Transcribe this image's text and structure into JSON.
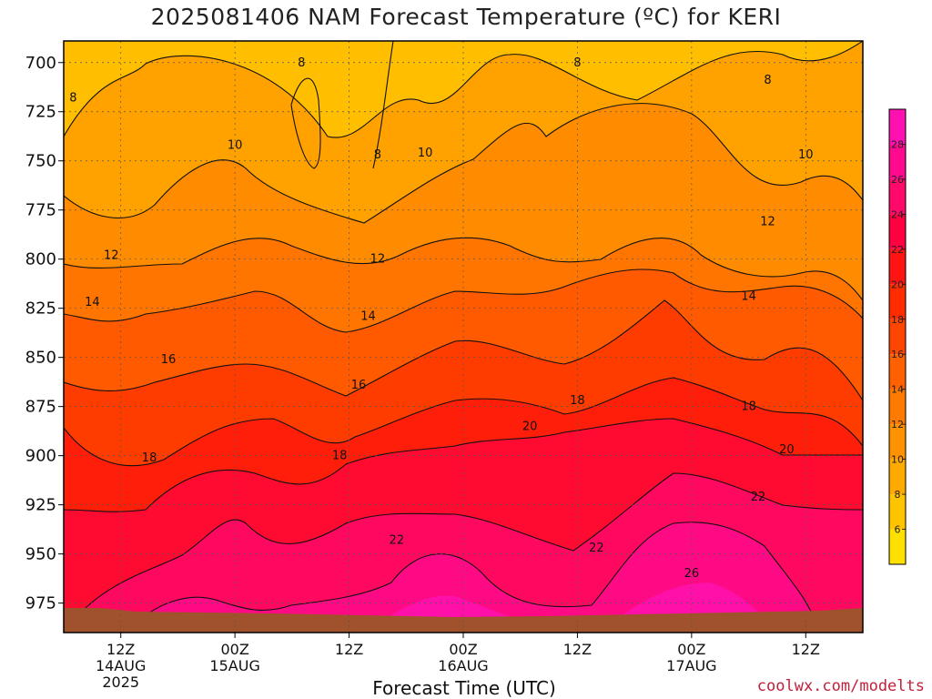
{
  "title": "2025081406 NAM Forecast Temperature (ºC) for KERI",
  "credit": "coolwx.com/modelts",
  "chart_data": {
    "type": "heatmap",
    "title": "2025081406 NAM Forecast Temperature (ºC) for KERI",
    "xlabel": "Forecast Time (UTC)",
    "ylabel": "",
    "y_scale": "pressure (inverted)",
    "y_ticks": [
      700,
      725,
      750,
      775,
      800,
      825,
      850,
      875,
      900,
      925,
      950,
      975
    ],
    "ylim": [
      990,
      689
    ],
    "x_ticks": [
      {
        "label": "12Z",
        "sub1": "14AUG",
        "sub2": "2025",
        "hours": 6
      },
      {
        "label": "00Z",
        "sub1": "15AUG",
        "sub2": "",
        "hours": 18
      },
      {
        "label": "12Z",
        "sub1": "",
        "sub2": "",
        "hours": 30
      },
      {
        "label": "00Z",
        "sub1": "16AUG",
        "sub2": "",
        "hours": 42
      },
      {
        "label": "12Z",
        "sub1": "",
        "sub2": "",
        "hours": 54
      },
      {
        "label": "00Z",
        "sub1": "17AUG",
        "sub2": "",
        "hours": 66
      },
      {
        "label": "12Z",
        "sub1": "",
        "sub2": "",
        "hours": 78
      }
    ],
    "xlim_hours": [
      0,
      84
    ],
    "grid": true,
    "colorbar": {
      "ticks": [
        6,
        8,
        10,
        12,
        14,
        16,
        18,
        20,
        22,
        24,
        26,
        28
      ],
      "colors": [
        "#ffe000",
        "#ffc400",
        "#ffaa00",
        "#ff9200",
        "#ff7a00",
        "#ff6000",
        "#ff4600",
        "#ff2c00",
        "#ff1414",
        "#ff0040",
        "#ff0a6a",
        "#ff0a8e",
        "#ff10b0"
      ]
    },
    "ground_color": "#a0522d",
    "isotherm_labels": [
      {
        "value": 8,
        "hours": 1,
        "p": 718
      },
      {
        "value": 8,
        "hours": 25,
        "p": 700
      },
      {
        "value": 8,
        "hours": 33,
        "p": 747
      },
      {
        "value": 8,
        "hours": 54,
        "p": 700
      },
      {
        "value": 8,
        "hours": 74,
        "p": 709
      },
      {
        "value": 10,
        "hours": 18,
        "p": 742
      },
      {
        "value": 10,
        "hours": 38,
        "p": 746
      },
      {
        "value": 10,
        "hours": 78,
        "p": 747
      },
      {
        "value": 12,
        "hours": 5,
        "p": 798
      },
      {
        "value": 12,
        "hours": 33,
        "p": 800
      },
      {
        "value": 12,
        "hours": 74,
        "p": 781
      },
      {
        "value": 14,
        "hours": 3,
        "p": 822
      },
      {
        "value": 14,
        "hours": 32,
        "p": 829
      },
      {
        "value": 14,
        "hours": 72,
        "p": 819
      },
      {
        "value": 16,
        "hours": 11,
        "p": 851
      },
      {
        "value": 16,
        "hours": 31,
        "p": 864
      },
      {
        "value": 18,
        "hours": 9,
        "p": 901
      },
      {
        "value": 18,
        "hours": 29,
        "p": 900
      },
      {
        "value": 18,
        "hours": 54,
        "p": 872
      },
      {
        "value": 18,
        "hours": 72,
        "p": 875
      },
      {
        "value": 20,
        "hours": 49,
        "p": 885
      },
      {
        "value": 20,
        "hours": 76,
        "p": 897
      },
      {
        "value": 22,
        "hours": 35,
        "p": 943
      },
      {
        "value": 22,
        "hours": 56,
        "p": 947
      },
      {
        "value": 22,
        "hours": 73,
        "p": 921
      },
      {
        "value": 26,
        "hours": 66,
        "p": 960
      }
    ]
  }
}
